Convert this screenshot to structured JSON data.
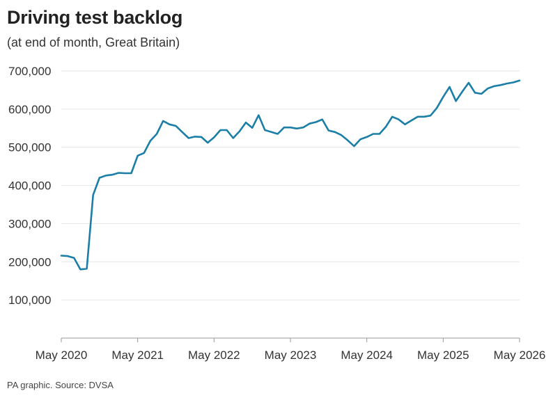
{
  "title": "Driving test backlog",
  "subtitle": "(at end of month, Great Britain)",
  "source": "PA graphic. Source: DVSA",
  "colors": {
    "line": "#1a7ea6",
    "grid": "#e6e6e6",
    "axis": "#999999"
  },
  "chart_data": {
    "type": "line",
    "title": "Driving test backlog",
    "subtitle": "(at end of month, Great Britain)",
    "xlabel": "",
    "ylabel": "",
    "xlim": [
      "May 2020",
      "May 2026"
    ],
    "ylim": [
      0,
      700000
    ],
    "grid": true,
    "yticks": [
      100000,
      200000,
      300000,
      400000,
      500000,
      600000,
      700000
    ],
    "ytick_labels": [
      "100,000",
      "200,000",
      "300,000",
      "400,000",
      "500,000",
      "600,000",
      "700,000"
    ],
    "xtick_labels": [
      "May 2020",
      "May 2021",
      "May 2022",
      "May 2023",
      "May 2024",
      "May 2025",
      "May 2026"
    ],
    "series": [
      {
        "x": [
          "2020-05",
          "2020-06",
          "2020-07",
          "2020-08",
          "2020-09",
          "2020-10",
          "2020-11",
          "2020-12",
          "2021-01",
          "2021-02",
          "2021-03",
          "2021-04",
          "2021-05",
          "2021-06",
          "2021-07",
          "2021-08",
          "2021-09",
          "2021-10",
          "2021-11",
          "2021-12",
          "2022-01",
          "2022-02",
          "2022-03",
          "2022-04",
          "2022-05",
          "2022-06",
          "2022-07",
          "2022-08",
          "2022-09",
          "2022-10",
          "2022-11",
          "2022-12",
          "2023-01",
          "2023-02",
          "2023-03",
          "2023-04",
          "2023-05",
          "2023-06",
          "2023-07",
          "2023-08",
          "2023-09",
          "2023-10",
          "2023-11",
          "2023-12",
          "2024-01",
          "2024-02",
          "2024-03",
          "2024-04",
          "2024-05",
          "2024-06",
          "2024-07",
          "2024-08",
          "2024-09",
          "2024-10",
          "2024-11",
          "2024-12",
          "2025-01",
          "2025-02",
          "2025-03",
          "2025-04",
          "2025-05",
          "2025-06",
          "2025-07",
          "2025-08",
          "2025-09",
          "2025-10",
          "2025-11",
          "2025-12",
          "2026-01",
          "2026-02",
          "2026-03",
          "2026-04",
          "2026-05"
        ],
        "values": [
          216000,
          215000,
          210000,
          180000,
          182000,
          375000,
          420000,
          426000,
          428000,
          433000,
          432000,
          432000,
          478000,
          485000,
          517000,
          535000,
          569000,
          560000,
          556000,
          540000,
          524000,
          528000,
          527000,
          512000,
          526000,
          545000,
          545000,
          524000,
          542000,
          565000,
          551000,
          584000,
          545000,
          540000,
          535000,
          552000,
          552000,
          549000,
          552000,
          562000,
          566000,
          573000,
          544000,
          540000,
          532000,
          518000,
          503000,
          521000,
          527000,
          535000,
          535000,
          554000,
          580000,
          573000,
          560000,
          570000,
          580000,
          580000,
          583000,
          603000,
          632000,
          658000,
          621000,
          646000,
          669000,
          643000,
          640000,
          654000,
          660000,
          663000,
          667000,
          670000,
          675000
        ]
      }
    ]
  }
}
